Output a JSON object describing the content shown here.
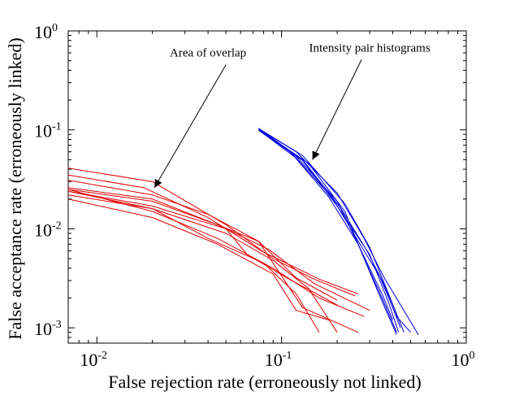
{
  "chart_data": {
    "type": "line",
    "xscale": "log",
    "yscale": "log",
    "xlim": [
      0.007,
      1
    ],
    "ylim": [
      0.0007,
      1
    ],
    "xlabel": "False rejection rate (erroneously not linked)",
    "ylabel": "False acceptance rate (erroneously linked)",
    "x_ticks": [
      {
        "value": 0.01,
        "base": "10",
        "exp": "-2"
      },
      {
        "value": 0.1,
        "base": "10",
        "exp": "-1"
      },
      {
        "value": 1,
        "base": "10",
        "exp": "0"
      }
    ],
    "y_ticks": [
      {
        "value": 0.001,
        "base": "10",
        "exp": "-3"
      },
      {
        "value": 0.01,
        "base": "10",
        "exp": "-2"
      },
      {
        "value": 0.1,
        "base": "10",
        "exp": "-1"
      },
      {
        "value": 1,
        "base": "10",
        "exp": "0"
      }
    ],
    "grid": false,
    "legend": "none",
    "annotations": [
      {
        "text": "Area of overlap",
        "text_x": 0.04,
        "text_y": 0.55,
        "arrow_to_x": 0.0205,
        "arrow_to_y": 0.026
      },
      {
        "text": "Intensity pair histograms",
        "text_x": 0.3,
        "text_y": 0.62,
        "arrow_to_x": 0.147,
        "arrow_to_y": 0.05
      }
    ],
    "colors": {
      "group_red": "#e00000",
      "group_blue": "#0000e0"
    },
    "series": [
      {
        "group": "red",
        "x": [
          0.007,
          0.02,
          0.05,
          0.09,
          0.15,
          0.25
        ],
        "y": [
          0.041,
          0.03,
          0.011,
          0.005,
          0.0031,
          0.0021
        ]
      },
      {
        "group": "red",
        "x": [
          0.007,
          0.018,
          0.04,
          0.08,
          0.16,
          0.26
        ],
        "y": [
          0.035,
          0.026,
          0.013,
          0.0058,
          0.0031,
          0.0022
        ]
      },
      {
        "group": "red",
        "x": [
          0.007,
          0.02,
          0.04,
          0.075,
          0.12,
          0.2
        ],
        "y": [
          0.031,
          0.022,
          0.014,
          0.0075,
          0.0032,
          0.0019
        ]
      },
      {
        "group": "red",
        "x": [
          0.007,
          0.02,
          0.045,
          0.085,
          0.15,
          0.3
        ],
        "y": [
          0.025,
          0.019,
          0.011,
          0.0062,
          0.0028,
          0.0015
        ]
      },
      {
        "group": "red",
        "x": [
          0.007,
          0.02,
          0.04,
          0.075,
          0.13,
          0.26
        ],
        "y": [
          0.026,
          0.02,
          0.012,
          0.0075,
          0.0016,
          0.0009
        ]
      },
      {
        "group": "red",
        "x": [
          0.007,
          0.02,
          0.05,
          0.065,
          0.11,
          0.2
        ],
        "y": [
          0.024,
          0.017,
          0.01,
          0.0055,
          0.0031,
          0.0017
        ]
      },
      {
        "group": "red",
        "x": [
          0.007,
          0.02,
          0.045,
          0.09,
          0.16,
          0.28
        ],
        "y": [
          0.025,
          0.015,
          0.008,
          0.004,
          0.002,
          0.0013
        ]
      },
      {
        "group": "red",
        "x": [
          0.007,
          0.02,
          0.045,
          0.09,
          0.12,
          0.18
        ],
        "y": [
          0.02,
          0.013,
          0.007,
          0.0035,
          0.0015,
          0.0012
        ]
      },
      {
        "group": "red",
        "x": [
          0.007,
          0.02,
          0.04,
          0.08,
          0.12,
          0.16
        ],
        "y": [
          0.024,
          0.016,
          0.008,
          0.0045,
          0.0022,
          0.0009
        ]
      },
      {
        "group": "red",
        "x": [
          0.007,
          0.02,
          0.05,
          0.09,
          0.14,
          0.2
        ],
        "y": [
          0.022,
          0.016,
          0.009,
          0.0048,
          0.0025,
          0.0009
        ]
      },
      {
        "group": "blue",
        "x": [
          0.075,
          0.12,
          0.2,
          0.28,
          0.36,
          0.45,
          0.55
        ],
        "y": [
          0.103,
          0.06,
          0.023,
          0.008,
          0.0032,
          0.0016,
          0.00085
        ]
      },
      {
        "group": "blue",
        "x": [
          0.076,
          0.13,
          0.22,
          0.3,
          0.38,
          0.46
        ],
        "y": [
          0.102,
          0.055,
          0.018,
          0.0065,
          0.0022,
          0.0009
        ]
      },
      {
        "group": "blue",
        "x": [
          0.075,
          0.12,
          0.19,
          0.26,
          0.34,
          0.42,
          0.5
        ],
        "y": [
          0.1,
          0.052,
          0.02,
          0.0075,
          0.0033,
          0.0013,
          0.0009
        ]
      },
      {
        "group": "blue",
        "x": [
          0.077,
          0.13,
          0.21,
          0.29,
          0.36,
          0.44
        ],
        "y": [
          0.098,
          0.05,
          0.016,
          0.006,
          0.0027,
          0.001
        ]
      },
      {
        "group": "blue",
        "x": [
          0.075,
          0.11,
          0.18,
          0.26,
          0.33,
          0.42
        ],
        "y": [
          0.104,
          0.062,
          0.021,
          0.007,
          0.0024,
          0.00085
        ]
      },
      {
        "group": "blue",
        "x": [
          0.078,
          0.14,
          0.22,
          0.28,
          0.35,
          0.42
        ],
        "y": [
          0.096,
          0.046,
          0.015,
          0.005,
          0.002,
          0.0009
        ]
      },
      {
        "group": "blue",
        "x": [
          0.076,
          0.12,
          0.2,
          0.27,
          0.35,
          0.4
        ],
        "y": [
          0.101,
          0.054,
          0.019,
          0.006,
          0.0022,
          0.0012
        ]
      },
      {
        "group": "blue",
        "x": [
          0.075,
          0.13,
          0.2,
          0.3,
          0.38,
          0.43
        ],
        "y": [
          0.099,
          0.049,
          0.017,
          0.0055,
          0.0018,
          0.0009
        ]
      }
    ]
  }
}
